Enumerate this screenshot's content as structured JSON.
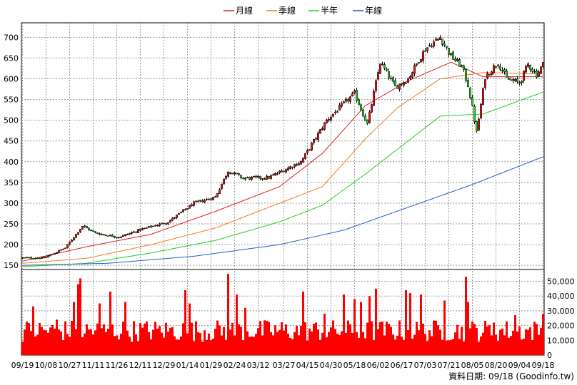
{
  "chart_data": {
    "type": "candlestick-volume",
    "legend": [
      {
        "label": "月線",
        "color": "#d81e1e"
      },
      {
        "label": "季線",
        "color": "#f07b1c"
      },
      {
        "label": "半年",
        "color": "#22cc22"
      },
      {
        "label": "年線",
        "color": "#1f5fc8"
      }
    ],
    "price_axis": {
      "min": 140,
      "max": 735,
      "ticks": [
        150,
        200,
        250,
        300,
        350,
        400,
        450,
        500,
        550,
        600,
        650,
        700
      ]
    },
    "volume_axis": {
      "min": 0,
      "max": 58000,
      "ticks": [
        0,
        10000,
        20000,
        30000,
        40000,
        50000
      ],
      "tick_labels": [
        "0",
        "10,000",
        "20,000",
        "30,000",
        "40,000",
        "50,000"
      ]
    },
    "x_labels": [
      "09/19",
      "10/08",
      "10/27",
      "11/11",
      "11/26",
      "12/11",
      "12/29",
      "01/14",
      "01/29",
      "02/24",
      "03/12",
      "03/27",
      "04/15",
      "04/30",
      "05/18",
      "06/02",
      "06/17",
      "07/03",
      "07/21",
      "08/05",
      "08/20",
      "09/04",
      "09/18"
    ],
    "bars_total": 244,
    "close_anchors": [
      [
        0,
        168
      ],
      [
        10,
        168
      ],
      [
        20,
        192
      ],
      [
        28,
        245
      ],
      [
        34,
        228
      ],
      [
        45,
        218
      ],
      [
        55,
        236
      ],
      [
        68,
        255
      ],
      [
        80,
        300
      ],
      [
        90,
        315
      ],
      [
        96,
        378
      ],
      [
        103,
        360
      ],
      [
        115,
        362
      ],
      [
        130,
        400
      ],
      [
        142,
        500
      ],
      [
        155,
        565
      ],
      [
        161,
        490
      ],
      [
        167,
        640
      ],
      [
        174,
        580
      ],
      [
        180,
        600
      ],
      [
        188,
        672
      ],
      [
        195,
        700
      ],
      [
        200,
        655
      ],
      [
        205,
        630
      ],
      [
        208,
        585
      ],
      [
        210,
        530
      ],
      [
        212,
        470
      ],
      [
        216,
        605
      ],
      [
        222,
        640
      ],
      [
        226,
        600
      ],
      [
        232,
        590
      ],
      [
        236,
        635
      ],
      [
        240,
        610
      ],
      [
        243,
        635
      ]
    ],
    "ma_monthly": [
      [
        0,
        160
      ],
      [
        30,
        195
      ],
      [
        60,
        225
      ],
      [
        90,
        280
      ],
      [
        120,
        340
      ],
      [
        140,
        420
      ],
      [
        160,
        535
      ],
      [
        180,
        595
      ],
      [
        200,
        640
      ],
      [
        215,
        605
      ],
      [
        243,
        605
      ]
    ],
    "ma_quarterly": [
      [
        0,
        155
      ],
      [
        30,
        167
      ],
      [
        60,
        200
      ],
      [
        90,
        240
      ],
      [
        120,
        300
      ],
      [
        140,
        340
      ],
      [
        160,
        455
      ],
      [
        175,
        530
      ],
      [
        195,
        600
      ],
      [
        215,
        615
      ],
      [
        243,
        612
      ]
    ],
    "ma_halfyear": [
      [
        0,
        147
      ],
      [
        30,
        155
      ],
      [
        60,
        180
      ],
      [
        90,
        210
      ],
      [
        120,
        255
      ],
      [
        140,
        295
      ],
      [
        160,
        370
      ],
      [
        175,
        430
      ],
      [
        195,
        510
      ],
      [
        215,
        515
      ],
      [
        243,
        568
      ]
    ],
    "ma_yearly": [
      [
        0,
        150
      ],
      [
        40,
        155
      ],
      [
        80,
        172
      ],
      [
        120,
        200
      ],
      [
        150,
        235
      ],
      [
        180,
        290
      ],
      [
        210,
        345
      ],
      [
        243,
        412
      ]
    ],
    "volume_spikes": [
      [
        5,
        33000
      ],
      [
        16,
        24000
      ],
      [
        24,
        36000
      ],
      [
        26,
        48000
      ],
      [
        27,
        52000
      ],
      [
        36,
        35000
      ],
      [
        41,
        43000
      ],
      [
        48,
        36000
      ],
      [
        76,
        44000
      ],
      [
        78,
        35000
      ],
      [
        96,
        55000
      ],
      [
        100,
        41000
      ],
      [
        104,
        32000
      ],
      [
        131,
        43000
      ],
      [
        141,
        28000
      ],
      [
        150,
        41000
      ],
      [
        155,
        38000
      ],
      [
        158,
        36000
      ],
      [
        162,
        40000
      ],
      [
        165,
        45000
      ],
      [
        179,
        44000
      ],
      [
        181,
        42000
      ],
      [
        186,
        41000
      ],
      [
        197,
        37000
      ],
      [
        207,
        53000
      ],
      [
        208,
        36000
      ],
      [
        220,
        22000
      ],
      [
        230,
        27000
      ],
      [
        243,
        28000
      ]
    ],
    "source_text": "資料日期: 09/18  (Goodinfo.tw)"
  }
}
